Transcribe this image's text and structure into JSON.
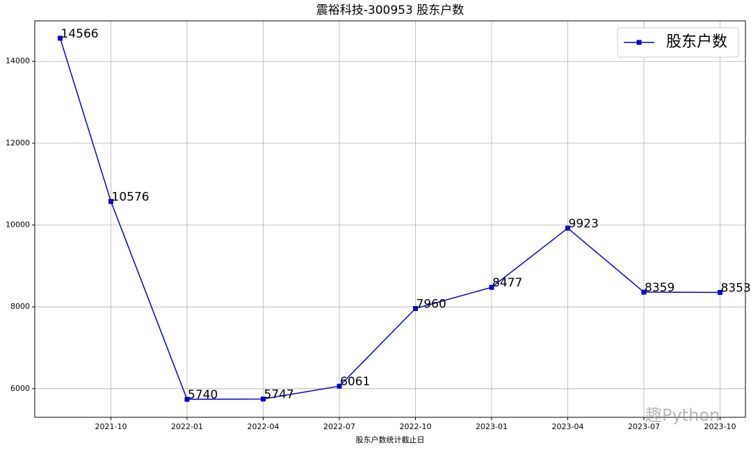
{
  "chart_data": {
    "type": "line",
    "title": "震裕科技-300953 股东户数",
    "x_label": "股东户数统计截止日",
    "x": [
      "2021-08",
      "2021-10",
      "2022-01",
      "2022-04",
      "2022-07",
      "2022-10",
      "2023-01",
      "2023-04",
      "2023-07",
      "2023-10"
    ],
    "series": [
      {
        "name": "股东户数",
        "color": "#0000cc",
        "marker": "square",
        "values": [
          14566,
          10576,
          5740,
          5747,
          6061,
          7960,
          8477,
          9923,
          8359,
          8353
        ]
      }
    ],
    "xlim": [
      "2021-07",
      "2023-11"
    ],
    "xticks": [
      "2021-10",
      "2022-01",
      "2022-04",
      "2022-07",
      "2022-10",
      "2023-01",
      "2023-04",
      "2023-07",
      "2023-10"
    ],
    "ylim": [
      5300,
      14990
    ],
    "yticks": [
      6000,
      8000,
      10000,
      12000,
      14000
    ],
    "grid": true,
    "legend": "upper right",
    "data_labels": true,
    "watermark": "趣Python"
  }
}
